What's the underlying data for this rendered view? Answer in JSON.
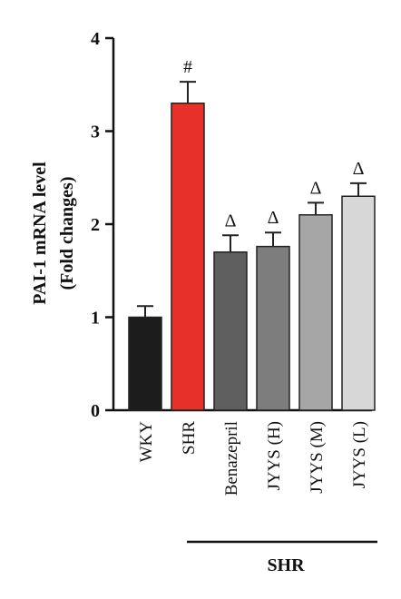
{
  "chart_data": {
    "type": "bar",
    "categories": [
      "WKY",
      "SHR",
      "Benazepril",
      "JYYS (H)",
      "JYYS (M)",
      "JYYS (L)"
    ],
    "values": [
      1.0,
      3.3,
      1.7,
      1.76,
      2.1,
      2.3
    ],
    "errors": [
      0.12,
      0.23,
      0.18,
      0.15,
      0.13,
      0.14
    ],
    "annotations": [
      "",
      "#",
      "Δ",
      "Δ",
      "Δ",
      "Δ"
    ],
    "colors": [
      "#1c1c1c",
      "#e8302a",
      "#5f5f5f",
      "#7d7d7d",
      "#a6a6a6",
      "#d7d7d7"
    ],
    "ylabel_line1": "PAI-1 mRNA level",
    "ylabel_line2": "(Fold changes)",
    "ylim": [
      0,
      4
    ],
    "yticks": [
      "0",
      "1",
      "2",
      "3",
      "4"
    ],
    "group_bracket": {
      "label": "SHR",
      "spans": [
        "Benazepril",
        "JYYS (L)"
      ]
    },
    "grid": false
  }
}
